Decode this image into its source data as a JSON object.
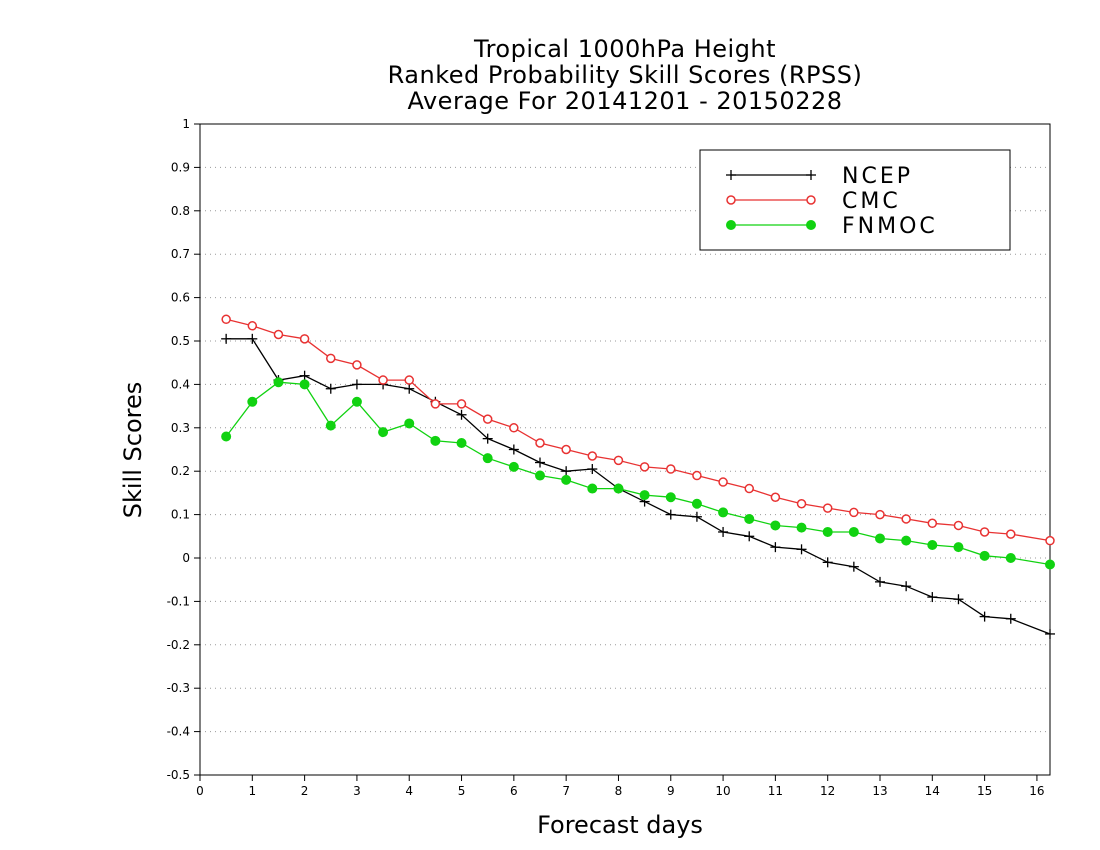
{
  "chart_data": {
    "type": "line",
    "title_lines": [
      "Tropical 1000hPa Height",
      "Ranked Probability Skill Scores (RPSS)",
      "Average For 20141201 - 20150228"
    ],
    "xlabel": "Forecast days",
    "ylabel": "Skill Scores",
    "xlim": [
      0,
      16.25
    ],
    "ylim": [
      -0.5,
      1
    ],
    "x_ticks": [
      "0",
      "1",
      "2",
      "3",
      "4",
      "5",
      "6",
      "7",
      "8",
      "9",
      "10",
      "11",
      "12",
      "13",
      "14",
      "15",
      "16"
    ],
    "y_ticks": [
      "1",
      "0.9",
      "0.8",
      "0.7",
      "0.6",
      "0.5",
      "0.4",
      "0.3",
      "0.2",
      "0.1",
      "0",
      "-0.1",
      "-0.2",
      "-0.3",
      "-0.4",
      "-0.5"
    ],
    "grid": "dotted horizontal",
    "legend_position": "top-right",
    "x": [
      0.5,
      1,
      1.5,
      2,
      2.5,
      3,
      3.5,
      4,
      4.5,
      5,
      5.5,
      6,
      6.5,
      7,
      7.5,
      8,
      8.5,
      9,
      9.5,
      10,
      10.5,
      11,
      11.5,
      12,
      12.5,
      13,
      13.5,
      14,
      14.5,
      15,
      15.5,
      16.25
    ],
    "series": [
      {
        "name": "NCEP",
        "color": "#000000",
        "marker": "plus",
        "values": [
          0.505,
          0.505,
          0.41,
          0.42,
          0.39,
          0.4,
          0.4,
          0.39,
          0.36,
          0.33,
          0.275,
          0.25,
          0.22,
          0.2,
          0.205,
          0.16,
          0.13,
          0.1,
          0.095,
          0.06,
          0.05,
          0.025,
          0.02,
          -0.01,
          -0.02,
          -0.055,
          -0.065,
          -0.09,
          -0.095,
          -0.135,
          -0.14,
          -0.175
        ]
      },
      {
        "name": "CMC",
        "color": "#e83232",
        "marker": "open-circle",
        "values": [
          0.55,
          0.535,
          0.515,
          0.505,
          0.46,
          0.445,
          0.41,
          0.41,
          0.355,
          0.355,
          0.32,
          0.3,
          0.265,
          0.25,
          0.235,
          0.225,
          0.21,
          0.205,
          0.19,
          0.175,
          0.16,
          0.14,
          0.125,
          0.115,
          0.105,
          0.1,
          0.09,
          0.08,
          0.075,
          0.06,
          0.055,
          0.04
        ]
      },
      {
        "name": "FNMOC",
        "color": "#11d211",
        "marker": "filled-circle",
        "values": [
          0.28,
          0.36,
          0.405,
          0.4,
          0.305,
          0.36,
          0.29,
          0.31,
          0.27,
          0.265,
          0.23,
          0.21,
          0.19,
          0.18,
          0.16,
          0.16,
          0.145,
          0.14,
          0.125,
          0.105,
          0.09,
          0.075,
          0.07,
          0.06,
          0.06,
          0.045,
          0.04,
          0.03,
          0.025,
          0.005,
          0.0,
          -0.015
        ]
      }
    ]
  }
}
